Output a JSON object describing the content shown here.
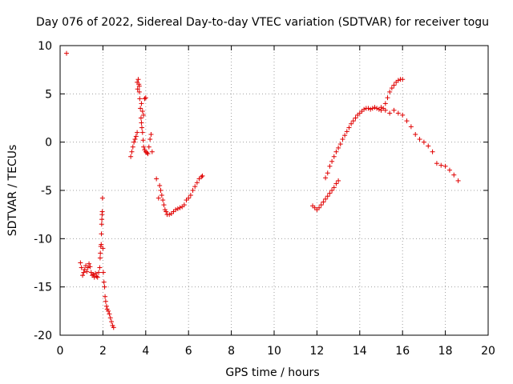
{
  "chart_data": {
    "type": "scatter",
    "title": "Day 076 of 2022, Sidereal Day-to-day VTEC variation (SDTVAR) for receiver togu",
    "xlabel": "GPS time / hours",
    "ylabel": "SDTVAR / TECUs",
    "xlim": [
      0,
      20
    ],
    "ylim": [
      -20,
      10
    ],
    "xticks": [
      0,
      2,
      4,
      6,
      8,
      10,
      12,
      14,
      16,
      18,
      20
    ],
    "yticks": [
      -20,
      -15,
      -10,
      -5,
      0,
      5,
      10
    ],
    "grid": true,
    "marker": "+",
    "color": "#e00000",
    "series": [
      {
        "name": "SDTVAR",
        "x": [
          0.3,
          0.95,
          1.0,
          1.05,
          1.1,
          1.15,
          1.2,
          1.25,
          1.3,
          1.35,
          1.4,
          1.45,
          1.5,
          1.55,
          1.6,
          1.65,
          1.7,
          1.75,
          1.8,
          1.85,
          1.87,
          1.88,
          1.9,
          1.92,
          1.93,
          1.94,
          1.95,
          1.96,
          1.97,
          1.98,
          2.0,
          2.02,
          2.05,
          2.08,
          2.1,
          2.13,
          2.17,
          2.2,
          2.25,
          2.3,
          2.35,
          2.4,
          2.45,
          2.5,
          3.3,
          3.35,
          3.4,
          3.45,
          3.5,
          3.55,
          3.6,
          3.62,
          3.65,
          3.68,
          3.7,
          3.72,
          3.75,
          3.78,
          3.8,
          3.82,
          3.85,
          3.88,
          3.9,
          3.95,
          4.0,
          4.05,
          4.1,
          4.15,
          4.2,
          4.25,
          4.3,
          3.6,
          3.7,
          3.8,
          3.85,
          3.9,
          3.95,
          4.0,
          4.5,
          4.6,
          4.65,
          4.7,
          4.75,
          4.8,
          4.85,
          4.9,
          4.95,
          5.0,
          5.1,
          5.2,
          5.3,
          5.4,
          5.5,
          5.6,
          5.7,
          5.8,
          5.9,
          6.0,
          6.1,
          6.2,
          6.3,
          6.4,
          6.5,
          6.6,
          6.65,
          11.8,
          11.9,
          12.0,
          12.1,
          12.2,
          12.3,
          12.4,
          12.5,
          12.6,
          12.7,
          12.8,
          12.9,
          13.0,
          12.4,
          12.5,
          12.6,
          12.7,
          12.8,
          12.9,
          13.0,
          13.1,
          13.2,
          13.3,
          13.4,
          13.5,
          13.6,
          13.7,
          13.8,
          13.9,
          14.0,
          14.1,
          14.2,
          14.3,
          14.4,
          14.5,
          14.6,
          14.7,
          14.8,
          14.9,
          15.0,
          15.1,
          15.2,
          15.3,
          15.4,
          15.5,
          15.6,
          15.7,
          15.8,
          15.9,
          16.0,
          15.0,
          15.2,
          15.4,
          15.6,
          15.8,
          16.0,
          16.2,
          16.4,
          16.6,
          16.8,
          17.0,
          17.2,
          17.4,
          17.6,
          17.8,
          18.0,
          18.2,
          18.4,
          18.6
        ],
        "y": [
          9.2,
          -12.5,
          -13.0,
          -13.8,
          -13.5,
          -13.2,
          -12.8,
          -13.4,
          -13.0,
          -12.6,
          -12.9,
          -13.5,
          -13.8,
          -13.7,
          -14.0,
          -13.6,
          -13.9,
          -14.0,
          -13.5,
          -13.0,
          -12.0,
          -11.5,
          -10.8,
          -10.6,
          -9.5,
          -8.5,
          -8.0,
          -7.5,
          -7.2,
          -5.8,
          -11.0,
          -13.5,
          -14.5,
          -15.0,
          -16.0,
          -16.5,
          -17.0,
          -17.3,
          -17.5,
          -17.8,
          -18.2,
          -18.6,
          -19.0,
          -19.2,
          -1.5,
          -1.0,
          -0.5,
          0.0,
          0.3,
          0.6,
          1.0,
          5.5,
          6.5,
          6.0,
          5.2,
          4.5,
          3.5,
          2.5,
          2.0,
          1.5,
          1.0,
          0.2,
          -0.5,
          -0.8,
          -1.0,
          -1.1,
          -1.2,
          -0.5,
          0.3,
          0.8,
          -1.0,
          6.2,
          5.8,
          4.0,
          3.2,
          2.8,
          4.5,
          4.6,
          -3.8,
          -5.8,
          -4.5,
          -5.0,
          -5.5,
          -6.0,
          -6.5,
          -7.0,
          -7.2,
          -7.5,
          -7.5,
          -7.4,
          -7.2,
          -7.0,
          -6.9,
          -6.8,
          -6.7,
          -6.5,
          -6.0,
          -5.8,
          -5.5,
          -5.0,
          -4.6,
          -4.2,
          -3.8,
          -3.6,
          -3.5,
          -6.6,
          -6.8,
          -7.0,
          -6.8,
          -6.5,
          -6.2,
          -5.9,
          -5.6,
          -5.3,
          -5.0,
          -4.7,
          -4.3,
          -4.0,
          -3.7,
          -3.2,
          -2.5,
          -2.0,
          -1.5,
          -1.0,
          -0.6,
          -0.2,
          0.3,
          0.7,
          1.1,
          1.5,
          1.9,
          2.2,
          2.5,
          2.8,
          3.0,
          3.2,
          3.4,
          3.5,
          3.5,
          3.4,
          3.5,
          3.6,
          3.5,
          3.4,
          3.3,
          3.5,
          4.0,
          4.6,
          5.2,
          5.6,
          5.9,
          6.2,
          6.4,
          6.5,
          6.5,
          3.6,
          3.3,
          3.0,
          3.3,
          3.0,
          2.8,
          2.2,
          1.6,
          0.8,
          0.3,
          0.0,
          -0.4,
          -1.0,
          -2.2,
          -2.4,
          -2.5,
          -2.9,
          -3.4,
          -4.0
        ]
      }
    ]
  }
}
